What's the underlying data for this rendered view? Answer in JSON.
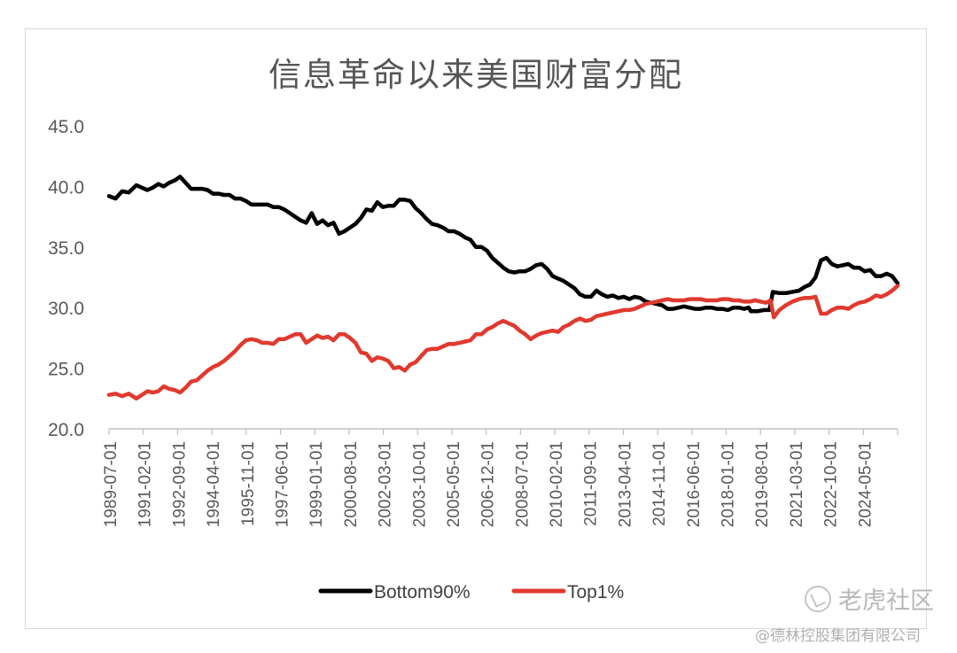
{
  "chart_data": {
    "type": "line",
    "title": "信息革命以来美国财富分配",
    "ylim": [
      20,
      45
    ],
    "yticks": [
      "20.0",
      "25.0",
      "30.0",
      "35.0",
      "40.0",
      "45.0"
    ],
    "grid": false,
    "legend_position": "bottom",
    "x_tick_labels": [
      "1989-07-01",
      "1991-02-01",
      "1992-09-01",
      "1994-04-01",
      "1995-11-01",
      "1997-06-01",
      "1999-01-01",
      "2000-08-01",
      "2002-03-01",
      "2003-10-01",
      "2005-05-01",
      "2006-12-01",
      "2008-07-01",
      "2010-02-01",
      "2011-09-01",
      "2013-04-01",
      "2014-11-01",
      "2016-06-01",
      "2018-01-01",
      "2019-08-01",
      "2021-03-01",
      "2022-10-01",
      "2024-05-01"
    ],
    "series": [
      {
        "name": "Bottom90%",
        "color": "#000000",
        "points": [
          [
            1989.5,
            39.2
          ],
          [
            1989.8,
            39.0
          ],
          [
            1990.1,
            39.6
          ],
          [
            1990.4,
            39.5
          ],
          [
            1990.75,
            40.1
          ],
          [
            1991.0,
            39.9
          ],
          [
            1991.25,
            39.7
          ],
          [
            1991.5,
            39.9
          ],
          [
            1991.75,
            40.2
          ],
          [
            1992.0,
            40.0
          ],
          [
            1992.25,
            40.3
          ],
          [
            1992.5,
            40.5
          ],
          [
            1992.75,
            40.8
          ],
          [
            1993.0,
            40.3
          ],
          [
            1993.25,
            39.8
          ],
          [
            1993.5,
            39.8
          ],
          [
            1993.75,
            39.8
          ],
          [
            1994.0,
            39.7
          ],
          [
            1994.25,
            39.4
          ],
          [
            1994.5,
            39.4
          ],
          [
            1994.75,
            39.3
          ],
          [
            1995.0,
            39.3
          ],
          [
            1995.25,
            39.0
          ],
          [
            1995.5,
            39.0
          ],
          [
            1995.75,
            38.8
          ],
          [
            1996.0,
            38.5
          ],
          [
            1996.25,
            38.5
          ],
          [
            1996.5,
            38.5
          ],
          [
            1996.75,
            38.5
          ],
          [
            1997.0,
            38.3
          ],
          [
            1997.25,
            38.3
          ],
          [
            1997.5,
            38.1
          ],
          [
            1997.75,
            37.8
          ],
          [
            1998.0,
            37.5
          ],
          [
            1998.25,
            37.2
          ],
          [
            1998.5,
            37.0
          ],
          [
            1998.75,
            37.8
          ],
          [
            1999.0,
            36.9
          ],
          [
            1999.25,
            37.2
          ],
          [
            1999.5,
            36.8
          ],
          [
            1999.75,
            37.0
          ],
          [
            2000.0,
            36.1
          ],
          [
            2000.25,
            36.3
          ],
          [
            2000.5,
            36.6
          ],
          [
            2000.75,
            36.9
          ],
          [
            2001.0,
            37.4
          ],
          [
            2001.25,
            38.1
          ],
          [
            2001.5,
            38.0
          ],
          [
            2001.75,
            38.7
          ],
          [
            2002.0,
            38.3
          ],
          [
            2002.25,
            38.4
          ],
          [
            2002.5,
            38.4
          ],
          [
            2002.75,
            38.9
          ],
          [
            2003.0,
            38.9
          ],
          [
            2003.25,
            38.8
          ],
          [
            2003.5,
            38.2
          ],
          [
            2003.75,
            37.8
          ],
          [
            2004.0,
            37.3
          ],
          [
            2004.25,
            36.9
          ],
          [
            2004.5,
            36.8
          ],
          [
            2004.75,
            36.6
          ],
          [
            2005.0,
            36.3
          ],
          [
            2005.25,
            36.3
          ],
          [
            2005.5,
            36.1
          ],
          [
            2005.75,
            35.8
          ],
          [
            2006.0,
            35.6
          ],
          [
            2006.25,
            35.0
          ],
          [
            2006.5,
            35.0
          ],
          [
            2006.75,
            34.7
          ],
          [
            2007.0,
            34.1
          ],
          [
            2007.25,
            33.7
          ],
          [
            2007.5,
            33.3
          ],
          [
            2007.75,
            33.0
          ],
          [
            2008.0,
            32.9
          ],
          [
            2008.25,
            33.0
          ],
          [
            2008.5,
            33.0
          ],
          [
            2008.75,
            33.2
          ],
          [
            2009.0,
            33.5
          ],
          [
            2009.25,
            33.6
          ],
          [
            2009.5,
            33.2
          ],
          [
            2009.75,
            32.6
          ],
          [
            2010.0,
            32.4
          ],
          [
            2010.25,
            32.2
          ],
          [
            2010.5,
            31.9
          ],
          [
            2010.75,
            31.6
          ],
          [
            2011.0,
            31.1
          ],
          [
            2011.25,
            30.9
          ],
          [
            2011.5,
            30.9
          ],
          [
            2011.75,
            31.4
          ],
          [
            2012.0,
            31.1
          ],
          [
            2012.25,
            30.9
          ],
          [
            2012.5,
            31.0
          ],
          [
            2012.75,
            30.8
          ],
          [
            2013.0,
            30.9
          ],
          [
            2013.25,
            30.7
          ],
          [
            2013.5,
            30.9
          ],
          [
            2013.75,
            30.8
          ],
          [
            2014.0,
            30.5
          ],
          [
            2014.25,
            30.4
          ],
          [
            2014.5,
            30.3
          ],
          [
            2014.75,
            30.2
          ],
          [
            2015.0,
            29.9
          ],
          [
            2015.25,
            29.9
          ],
          [
            2015.5,
            30.0
          ],
          [
            2015.75,
            30.1
          ],
          [
            2016.0,
            30.0
          ],
          [
            2016.25,
            29.9
          ],
          [
            2016.5,
            29.9
          ],
          [
            2016.75,
            30.0
          ],
          [
            2017.0,
            30.0
          ],
          [
            2017.25,
            29.9
          ],
          [
            2017.5,
            29.9
          ],
          [
            2017.75,
            29.8
          ],
          [
            2018.0,
            30.0
          ],
          [
            2018.25,
            30.0
          ],
          [
            2018.5,
            29.9
          ],
          [
            2018.7,
            30.0
          ],
          [
            2018.8,
            29.7
          ],
          [
            2019.1,
            29.7
          ],
          [
            2019.4,
            29.8
          ],
          [
            2019.65,
            29.8
          ],
          [
            2019.8,
            31.3
          ],
          [
            2020.1,
            31.2
          ],
          [
            2020.4,
            31.2
          ],
          [
            2020.7,
            31.3
          ],
          [
            2021.0,
            31.4
          ],
          [
            2021.25,
            31.7
          ],
          [
            2021.5,
            31.9
          ],
          [
            2021.75,
            32.5
          ],
          [
            2022.0,
            33.9
          ],
          [
            2022.25,
            34.1
          ],
          [
            2022.5,
            33.6
          ],
          [
            2022.75,
            33.4
          ],
          [
            2023.0,
            33.5
          ],
          [
            2023.25,
            33.6
          ],
          [
            2023.5,
            33.3
          ],
          [
            2023.75,
            33.3
          ],
          [
            2024.0,
            33.0
          ],
          [
            2024.25,
            33.1
          ],
          [
            2024.5,
            32.6
          ],
          [
            2024.75,
            32.6
          ],
          [
            2025.0,
            32.8
          ],
          [
            2025.25,
            32.6
          ],
          [
            2025.5,
            32.0
          ]
        ]
      },
      {
        "name": "Top1%",
        "color": "#e03a2f",
        "points": [
          [
            1989.5,
            22.8
          ],
          [
            1989.8,
            22.9
          ],
          [
            1990.1,
            22.7
          ],
          [
            1990.4,
            22.9
          ],
          [
            1990.75,
            22.5
          ],
          [
            1991.0,
            22.8
          ],
          [
            1991.25,
            23.1
          ],
          [
            1991.5,
            23.0
          ],
          [
            1991.75,
            23.1
          ],
          [
            1992.0,
            23.5
          ],
          [
            1992.25,
            23.3
          ],
          [
            1992.5,
            23.2
          ],
          [
            1992.75,
            23.0
          ],
          [
            1993.0,
            23.4
          ],
          [
            1993.25,
            23.9
          ],
          [
            1993.5,
            24.0
          ],
          [
            1993.75,
            24.4
          ],
          [
            1994.0,
            24.8
          ],
          [
            1994.25,
            25.1
          ],
          [
            1994.5,
            25.3
          ],
          [
            1994.75,
            25.6
          ],
          [
            1995.0,
            26.0
          ],
          [
            1995.25,
            26.4
          ],
          [
            1995.5,
            26.9
          ],
          [
            1995.75,
            27.3
          ],
          [
            1996.0,
            27.4
          ],
          [
            1996.25,
            27.3
          ],
          [
            1996.5,
            27.1
          ],
          [
            1996.75,
            27.1
          ],
          [
            1997.0,
            27.0
          ],
          [
            1997.25,
            27.4
          ],
          [
            1997.5,
            27.4
          ],
          [
            1997.75,
            27.6
          ],
          [
            1998.0,
            27.8
          ],
          [
            1998.25,
            27.8
          ],
          [
            1998.5,
            27.1
          ],
          [
            1998.75,
            27.4
          ],
          [
            1999.0,
            27.7
          ],
          [
            1999.25,
            27.5
          ],
          [
            1999.5,
            27.6
          ],
          [
            1999.75,
            27.3
          ],
          [
            2000.0,
            27.8
          ],
          [
            2000.25,
            27.8
          ],
          [
            2000.5,
            27.5
          ],
          [
            2000.75,
            27.1
          ],
          [
            2001.0,
            26.3
          ],
          [
            2001.25,
            26.2
          ],
          [
            2001.5,
            25.6
          ],
          [
            2001.75,
            25.9
          ],
          [
            2002.0,
            25.8
          ],
          [
            2002.25,
            25.6
          ],
          [
            2002.5,
            25.0
          ],
          [
            2002.75,
            25.1
          ],
          [
            2003.0,
            24.8
          ],
          [
            2003.25,
            25.3
          ],
          [
            2003.5,
            25.5
          ],
          [
            2003.75,
            26.0
          ],
          [
            2004.0,
            26.5
          ],
          [
            2004.25,
            26.6
          ],
          [
            2004.5,
            26.6
          ],
          [
            2004.75,
            26.8
          ],
          [
            2005.0,
            27.0
          ],
          [
            2005.25,
            27.0
          ],
          [
            2005.5,
            27.1
          ],
          [
            2005.75,
            27.2
          ],
          [
            2006.0,
            27.3
          ],
          [
            2006.25,
            27.8
          ],
          [
            2006.5,
            27.8
          ],
          [
            2006.75,
            28.2
          ],
          [
            2007.0,
            28.4
          ],
          [
            2007.25,
            28.7
          ],
          [
            2007.5,
            28.9
          ],
          [
            2007.75,
            28.7
          ],
          [
            2008.0,
            28.5
          ],
          [
            2008.25,
            28.1
          ],
          [
            2008.5,
            27.8
          ],
          [
            2008.75,
            27.4
          ],
          [
            2009.0,
            27.7
          ],
          [
            2009.25,
            27.9
          ],
          [
            2009.5,
            28.0
          ],
          [
            2009.75,
            28.1
          ],
          [
            2010.0,
            28.0
          ],
          [
            2010.25,
            28.4
          ],
          [
            2010.5,
            28.6
          ],
          [
            2010.75,
            28.9
          ],
          [
            2011.0,
            29.1
          ],
          [
            2011.25,
            28.9
          ],
          [
            2011.5,
            29.0
          ],
          [
            2011.75,
            29.3
          ],
          [
            2012.0,
            29.4
          ],
          [
            2012.25,
            29.5
          ],
          [
            2012.5,
            29.6
          ],
          [
            2012.75,
            29.7
          ],
          [
            2013.0,
            29.8
          ],
          [
            2013.25,
            29.8
          ],
          [
            2013.5,
            29.9
          ],
          [
            2013.75,
            30.1
          ],
          [
            2014.0,
            30.3
          ],
          [
            2014.25,
            30.4
          ],
          [
            2014.5,
            30.5
          ],
          [
            2014.75,
            30.6
          ],
          [
            2015.0,
            30.7
          ],
          [
            2015.25,
            30.6
          ],
          [
            2015.5,
            30.6
          ],
          [
            2015.75,
            30.6
          ],
          [
            2016.0,
            30.7
          ],
          [
            2016.25,
            30.7
          ],
          [
            2016.5,
            30.7
          ],
          [
            2016.75,
            30.6
          ],
          [
            2017.0,
            30.6
          ],
          [
            2017.25,
            30.6
          ],
          [
            2017.5,
            30.7
          ],
          [
            2017.75,
            30.7
          ],
          [
            2018.0,
            30.6
          ],
          [
            2018.25,
            30.6
          ],
          [
            2018.5,
            30.5
          ],
          [
            2018.75,
            30.5
          ],
          [
            2019.0,
            30.6
          ],
          [
            2019.25,
            30.5
          ],
          [
            2019.5,
            30.4
          ],
          [
            2019.7,
            30.6
          ],
          [
            2019.85,
            29.2
          ],
          [
            2020.1,
            29.8
          ],
          [
            2020.4,
            30.2
          ],
          [
            2020.7,
            30.5
          ],
          [
            2021.0,
            30.7
          ],
          [
            2021.25,
            30.8
          ],
          [
            2021.5,
            30.8
          ],
          [
            2021.75,
            30.9
          ],
          [
            2022.0,
            29.5
          ],
          [
            2022.25,
            29.5
          ],
          [
            2022.5,
            29.8
          ],
          [
            2022.75,
            30.0
          ],
          [
            2023.0,
            30.0
          ],
          [
            2023.25,
            29.9
          ],
          [
            2023.5,
            30.2
          ],
          [
            2023.75,
            30.4
          ],
          [
            2024.0,
            30.5
          ],
          [
            2024.25,
            30.7
          ],
          [
            2024.5,
            31.0
          ],
          [
            2024.75,
            30.9
          ],
          [
            2025.0,
            31.1
          ],
          [
            2025.25,
            31.4
          ],
          [
            2025.5,
            31.8
          ]
        ]
      }
    ]
  },
  "watermark": {
    "text": "老虎社区",
    "credit": "@德林控股集团有限公司",
    "logo_icon": "tiger-community-logo-icon"
  }
}
